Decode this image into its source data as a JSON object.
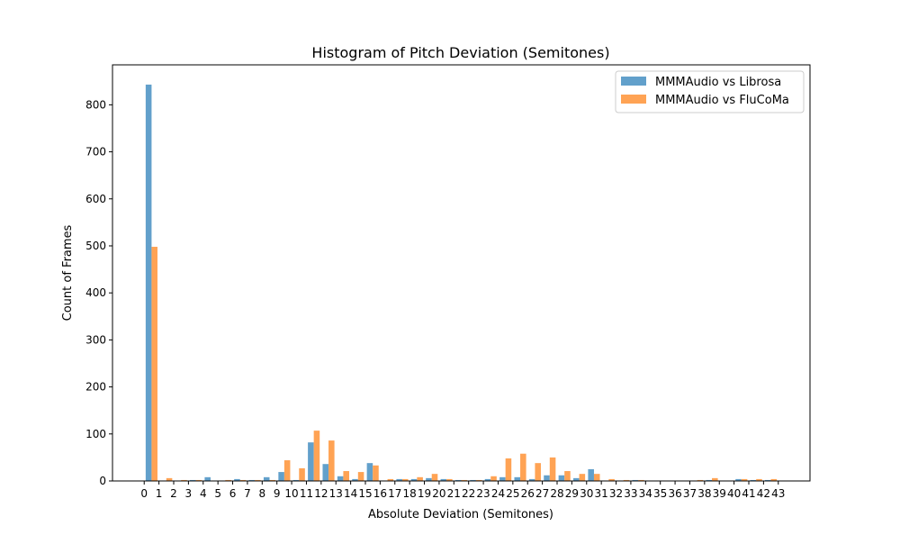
{
  "chart_data": {
    "type": "bar",
    "title": "Histogram of Pitch Deviation (Semitones)",
    "xlabel": "Absolute Deviation (Semitones)",
    "ylabel": "Count of Frames",
    "xlim": [
      -2.15,
      45.15
    ],
    "ylim": [
      0,
      885
    ],
    "yticks": [
      0,
      100,
      200,
      300,
      400,
      500,
      600,
      700,
      800
    ],
    "xticks": [
      0,
      1,
      2,
      3,
      4,
      5,
      6,
      7,
      8,
      9,
      10,
      11,
      12,
      13,
      14,
      15,
      16,
      17,
      18,
      19,
      20,
      21,
      22,
      23,
      24,
      25,
      26,
      27,
      28,
      29,
      30,
      31,
      32,
      33,
      34,
      35,
      36,
      37,
      38,
      39,
      40,
      41,
      42,
      43
    ],
    "bin_edges_start": [
      0,
      1,
      2,
      3,
      4,
      5,
      6,
      7,
      8,
      9,
      10,
      11,
      12,
      13,
      14,
      15,
      16,
      17,
      18,
      19,
      20,
      21,
      22,
      23,
      24,
      25,
      26,
      27,
      28,
      29,
      30,
      31,
      32,
      33,
      34,
      35,
      36,
      37,
      38,
      39,
      40,
      41,
      42
    ],
    "legend_position": "top-right",
    "grid": false,
    "series": [
      {
        "name": "MMMAudio vs Librosa",
        "color": "#62a0cb",
        "values": [
          843,
          0,
          0,
          2,
          8,
          0,
          4,
          2,
          8,
          19,
          2,
          82,
          36,
          10,
          4,
          38,
          0,
          4,
          4,
          6,
          4,
          2,
          2,
          4,
          8,
          8,
          4,
          12,
          12,
          6,
          25,
          0,
          0,
          2,
          0,
          0,
          0,
          0,
          2,
          0,
          4,
          2,
          2
        ]
      },
      {
        "name": "MMMAudio vs FluCoMa",
        "color": "#ffa354",
        "values": [
          498,
          6,
          2,
          2,
          0,
          2,
          2,
          2,
          2,
          44,
          27,
          107,
          86,
          21,
          19,
          33,
          4,
          4,
          8,
          15,
          4,
          2,
          2,
          10,
          48,
          58,
          38,
          50,
          21,
          15,
          15,
          4,
          2,
          2,
          0,
          0,
          0,
          2,
          6,
          0,
          4,
          4,
          4
        ]
      }
    ]
  }
}
